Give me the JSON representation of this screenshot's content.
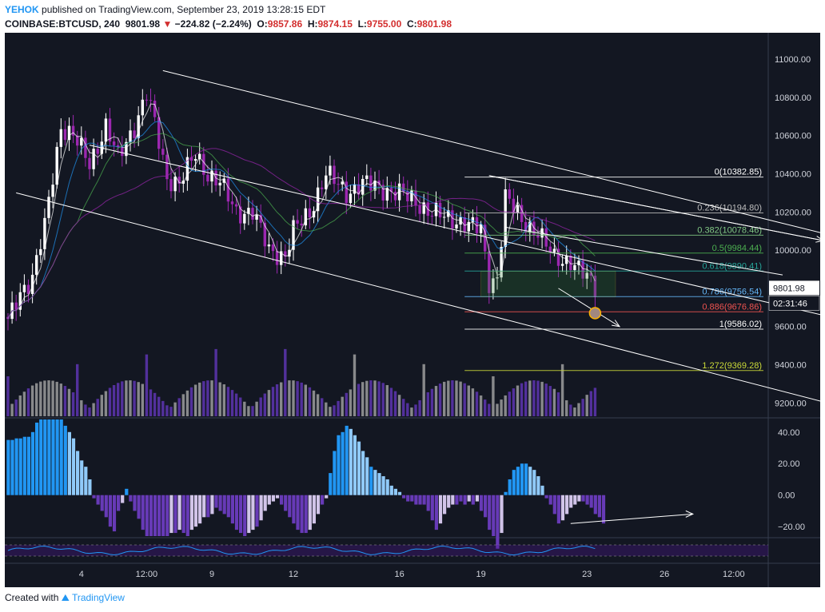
{
  "header": {
    "publisher": "YEHOK",
    "published_text": "published on TradingView.com, September 23, 2019 13:28:15 EDT",
    "symbol": "COINBASE:BTCUSD, 240",
    "last": "9801.98",
    "change": "−224.82 (−2.24%)",
    "o_label": "O:",
    "o_val": "9857.86",
    "h_label": "H:",
    "h_val": "9874.15",
    "l_label": "L:",
    "l_val": "9755.00",
    "c_label": "C:",
    "c_val": "9801.98"
  },
  "footer": {
    "created_with": "Created with",
    "brand": "TradingView"
  },
  "colors": {
    "background": "#131722",
    "up": "#ffffff",
    "down": "#9c27b0",
    "macd_bull": "#2196f3",
    "macd_bull_weak": "#90caf9",
    "macd_bear": "#673ab7",
    "macd_bear_weak": "#d1c4e9",
    "price_badge": "#ffffff",
    "fib_red": "#ef5350",
    "fib_green": "#4caf50",
    "fib_lime": "#cddc39"
  },
  "chart_data": [
    {
      "type": "candlestick",
      "panel": "price",
      "ylim": [
        9130,
        11130
      ],
      "yticks": [
        9200,
        9400,
        9600,
        9800,
        10000,
        10200,
        10400,
        10600,
        10800,
        11000
      ],
      "ytick_labels": [
        "9200.00",
        "9400.00",
        "9600.00",
        "9800.00",
        "10000.00",
        "10200.00",
        "10400.00",
        "10600.00",
        "10800.00",
        "11000.00"
      ],
      "xtick_labels": [
        "4",
        "12:00",
        "9",
        "12",
        "16",
        "19",
        "23",
        "26",
        "12:00"
      ],
      "current_price": "9801.98",
      "countdown": "02:31:46",
      "anchors": [
        [
          0,
          9650,
          9620
        ],
        [
          3,
          9800,
          9780
        ],
        [
          6,
          9850,
          9860
        ],
        [
          9,
          10100,
          10120
        ],
        [
          13,
          10650,
          10650
        ],
        [
          16,
          10550,
          10600
        ],
        [
          20,
          10400,
          10450
        ],
        [
          24,
          10650,
          10650
        ],
        [
          27,
          10500,
          10480
        ],
        [
          31,
          10650,
          10650
        ],
        [
          34,
          10850,
          10820
        ],
        [
          36,
          10700,
          10660
        ],
        [
          39,
          10400,
          10380
        ],
        [
          42,
          10350,
          10350
        ],
        [
          46,
          10500,
          10500
        ],
        [
          49,
          10400,
          10400
        ],
        [
          52,
          10350,
          10350
        ],
        [
          56,
          10250,
          10200
        ],
        [
          60,
          10200,
          10200
        ],
        [
          64,
          10050,
          10000
        ],
        [
          68,
          10000,
          9970
        ],
        [
          70,
          10100,
          10100
        ],
        [
          74,
          10200,
          10200
        ],
        [
          78,
          10420,
          10400
        ],
        [
          83,
          10300,
          10300
        ],
        [
          87,
          10350,
          10350
        ],
        [
          92,
          10320,
          10320
        ],
        [
          96,
          10300,
          10300
        ],
        [
          100,
          10250,
          10250
        ],
        [
          104,
          10200,
          10200
        ],
        [
          108,
          10170,
          10160
        ],
        [
          112,
          10150,
          10150
        ],
        [
          116,
          10100,
          10100
        ],
        [
          118,
          9950,
          9830
        ],
        [
          120,
          9850,
          9860
        ],
        [
          122,
          10300,
          10280
        ],
        [
          126,
          10150,
          10150
        ],
        [
          130,
          10100,
          10100
        ],
        [
          134,
          9950,
          9950
        ],
        [
          138,
          9950,
          9950
        ],
        [
          142,
          9850,
          9850
        ],
        [
          144,
          9830,
          9801.98
        ]
      ],
      "volume_bars": 145,
      "trendlines": [
        {
          "from": [
            38,
            10940
          ],
          "to": [
            230,
            9930
          ]
        },
        {
          "from": [
            20,
            10550
          ],
          "to": [
            230,
            9510
          ]
        },
        {
          "from": [
            2,
            10300
          ],
          "to": [
            210,
            9150
          ]
        },
        {
          "from": [
            118,
            10390
          ],
          "to": [
            200,
            10050
          ]
        },
        {
          "from": [
            122,
            10120
          ],
          "to": [
            190,
            9870
          ]
        }
      ],
      "arrows": [
        {
          "from": [
            118,
            10390
          ],
          "to": [
            200,
            10050
          ]
        },
        {
          "from": [
            135,
            9800
          ],
          "to": [
            150,
            9600
          ]
        }
      ],
      "fib_retracement": [
        {
          "ratio": "0",
          "price": "10382.85",
          "label": "0(10382.85)",
          "color": "#ffffff"
        },
        {
          "ratio": "0.236",
          "price": "10194.80",
          "label": "0.236(10194.80)",
          "color": "#bdbdbd"
        },
        {
          "ratio": "0.382",
          "price": "10078.46",
          "label": "0.382(10078.46)",
          "color": "#81c784"
        },
        {
          "ratio": "0.5",
          "price": "9984.44",
          "label": "0.5(9984.44)",
          "color": "#4caf50"
        },
        {
          "ratio": "0.618",
          "price": "9890.41",
          "label": "0.618(9890.41)",
          "color": "#26a69a"
        },
        {
          "ratio": "0.786",
          "price": "9756.54",
          "label": "0.786(9756.54)",
          "color": "#64b5f6"
        },
        {
          "ratio": "0.886",
          "price": "9676.86",
          "label": "0.886(9676.86)",
          "color": "#ef5350"
        },
        {
          "ratio": "1",
          "price": "9586.02",
          "label": "1(9586.02)",
          "color": "#ffffff"
        },
        {
          "ratio": "1.272",
          "price": "9369.28",
          "label": "1.272(9369.28)",
          "color": "#cddc39"
        }
      ]
    },
    {
      "type": "histogram",
      "panel": "macd",
      "ylim": [
        -26,
        48
      ],
      "yticks": [
        40,
        20,
        0,
        -20
      ],
      "ytick_labels": [
        "40.00",
        "20.00",
        "0.00",
        "−20.00"
      ],
      "segments": [
        {
          "start": 0,
          "end": 5,
          "values": [
            35,
            35,
            36,
            36,
            37,
            37
          ]
        },
        {
          "start": 6,
          "end": 13,
          "values": [
            40,
            46,
            48,
            48,
            48,
            48,
            48,
            48
          ]
        },
        {
          "start": 14,
          "end": 20,
          "values": [
            44,
            40,
            36,
            28,
            22,
            18,
            10
          ]
        },
        {
          "start": 21,
          "end": 26,
          "values": [
            -2,
            -6,
            -10,
            -14,
            -20,
            -23
          ]
        },
        {
          "start": 27,
          "end": 28,
          "values": [
            -10,
            -5
          ]
        },
        {
          "start": 29,
          "end": 29,
          "values": [
            4
          ]
        },
        {
          "start": 30,
          "end": 38,
          "values": [
            -4,
            -10,
            -15,
            -22,
            -26,
            -26,
            -26,
            -26,
            -26
          ]
        },
        {
          "start": 39,
          "end": 50,
          "values": [
            -26,
            -24,
            -24,
            -22,
            -24,
            -26,
            -22,
            -20,
            -18,
            -14,
            -14,
            -12
          ]
        },
        {
          "start": 51,
          "end": 60,
          "values": [
            -8,
            -10,
            -12,
            -14,
            -18,
            -22,
            -24,
            -26,
            -24,
            -22
          ]
        },
        {
          "start": 61,
          "end": 70,
          "values": [
            -20,
            -16,
            -10,
            -6,
            -4,
            -2,
            -6,
            -10,
            -14,
            -18
          ]
        },
        {
          "start": 71,
          "end": 76,
          "values": [
            -22,
            -24,
            -24,
            -22,
            -18,
            -12
          ]
        },
        {
          "start": 77,
          "end": 82,
          "values": [
            -6,
            -2,
            14,
            28,
            38,
            40
          ]
        },
        {
          "start": 83,
          "end": 88,
          "values": [
            44,
            42,
            38,
            34,
            28,
            24
          ]
        },
        {
          "start": 89,
          "end": 96,
          "values": [
            18,
            16,
            14,
            12,
            10,
            6,
            4,
            2
          ]
        },
        {
          "start": 97,
          "end": 102,
          "values": [
            -2,
            -4,
            -4,
            -6,
            -6,
            -6
          ]
        },
        {
          "start": 103,
          "end": 110,
          "values": [
            -10,
            -16,
            -22,
            -18,
            -12,
            -8,
            -6,
            -6
          ]
        },
        {
          "start": 111,
          "end": 117,
          "values": [
            -4,
            -6,
            -4,
            -6,
            -4,
            -10,
            -14
          ]
        },
        {
          "start": 118,
          "end": 121,
          "values": [
            -22,
            -26,
            -34,
            -24
          ]
        },
        {
          "start": 122,
          "end": 131,
          "values": [
            2,
            10,
            16,
            18,
            20,
            20,
            18,
            16,
            12,
            6
          ]
        },
        {
          "start": 132,
          "end": 140,
          "values": [
            -2,
            -6,
            -12,
            -18,
            -16,
            -12,
            -8,
            -6,
            -4
          ]
        },
        {
          "start": 141,
          "end": 146,
          "values": [
            -4,
            -6,
            -8,
            -12,
            -14,
            -18
          ]
        }
      ],
      "arrow": {
        "from": [
          138,
          -18
        ],
        "to": [
          168,
          -12
        ]
      }
    },
    {
      "type": "line",
      "panel": "oscillator",
      "band": [
        0.25,
        0.75
      ]
    }
  ]
}
